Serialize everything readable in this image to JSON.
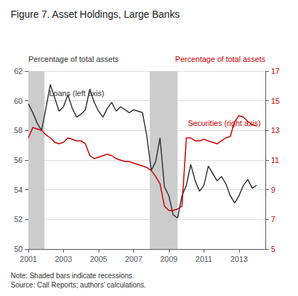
{
  "chart_data": {
    "type": "line",
    "title": "Figure 7. Asset Holdings, Large Banks",
    "y_label": "Percentage of total assets",
    "y2_label": "Percentage of total assets",
    "note": "Note: Shaded bars indicate recessions.\nSource: Call Reports; authors' calculations.",
    "xlim": [
      2001,
      2014.5
    ],
    "xticks": [
      2001,
      2003,
      2005,
      2007,
      2009,
      2011,
      2013
    ],
    "ylim": [
      50,
      62
    ],
    "yticks": [
      50,
      52,
      54,
      56,
      58,
      60,
      62
    ],
    "y2lim": [
      5,
      17
    ],
    "y2ticks": [
      5,
      7,
      9,
      11,
      13,
      15,
      17
    ],
    "grid": true,
    "recession_bands": [
      [
        2001.0,
        2001.917
      ],
      [
        2007.917,
        2009.5
      ]
    ],
    "recession_color": "#cccccc",
    "annotations": [
      {
        "text": "Loans (left axis)",
        "x": 2002.1,
        "y": 60.5,
        "axis": "y"
      },
      {
        "text": "Securities (right axis)",
        "x": 2010.0,
        "y": 13.5,
        "axis": "y2"
      }
    ],
    "x": [
      2001.0,
      2001.25,
      2001.5,
      2001.75,
      2002.0,
      2002.25,
      2002.5,
      2002.75,
      2003.0,
      2003.25,
      2003.5,
      2003.75,
      2004.0,
      2004.25,
      2004.5,
      2004.75,
      2005.0,
      2005.25,
      2005.5,
      2005.75,
      2006.0,
      2006.25,
      2006.5,
      2006.75,
      2007.0,
      2007.25,
      2007.5,
      2007.75,
      2008.0,
      2008.25,
      2008.5,
      2008.75,
      2009.0,
      2009.25,
      2009.5,
      2009.75,
      2010.0,
      2010.25,
      2010.5,
      2010.75,
      2011.0,
      2011.25,
      2011.5,
      2011.75,
      2012.0,
      2012.25,
      2012.5,
      2012.75,
      2013.0,
      2013.25,
      2013.5,
      2013.75,
      2014.0
    ],
    "series": [
      {
        "color": "#333333",
        "axis": "y",
        "values": [
          59.8,
          59.2,
          58.5,
          58.0,
          59.5,
          61.1,
          60.2,
          59.3,
          59.6,
          60.4,
          59.5,
          58.9,
          59.1,
          59.4,
          60.8,
          59.9,
          59.3,
          58.9,
          59.5,
          59.9,
          59.3,
          59.6,
          59.4,
          59.2,
          59.4,
          59.3,
          59.2,
          57.6,
          55.3,
          55.9,
          57.5,
          54.2,
          53.6,
          52.3,
          52.1,
          53.6,
          54.3,
          55.7,
          54.6,
          53.9,
          54.3,
          55.6,
          55.1,
          54.6,
          54.9,
          54.4,
          53.6,
          53.1,
          53.6,
          54.3,
          54.7,
          54.1,
          54.3
        ]
      },
      {
        "color": "#cc0000",
        "axis": "y2",
        "values": [
          12.5,
          13.2,
          13.1,
          13.0,
          12.7,
          12.5,
          12.2,
          12.1,
          12.2,
          12.5,
          12.4,
          12.3,
          12.3,
          12.1,
          11.3,
          11.1,
          11.2,
          11.3,
          11.4,
          11.3,
          11.1,
          11.0,
          10.9,
          10.9,
          10.8,
          10.7,
          10.6,
          10.5,
          10.3,
          9.9,
          9.4,
          7.9,
          7.6,
          7.6,
          7.7,
          7.9,
          12.5,
          12.5,
          12.3,
          12.3,
          12.4,
          12.3,
          12.2,
          12.1,
          12.3,
          12.5,
          12.6,
          13.6,
          14.0,
          13.9,
          13.6,
          13.4,
          13.3
        ]
      }
    ]
  }
}
